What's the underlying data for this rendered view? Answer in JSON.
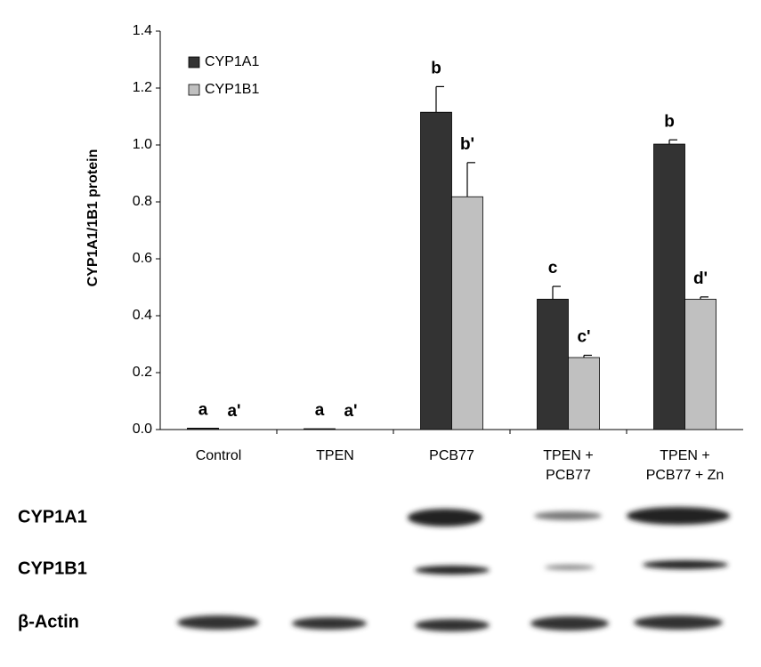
{
  "chart_data": {
    "type": "bar",
    "ylabel": "CYP1A1/1B1 protein",
    "categories": [
      [
        "Control"
      ],
      [
        "TPEN"
      ],
      [
        "PCB77"
      ],
      [
        "TPEN +",
        "PCB77"
      ],
      [
        "TPEN +",
        "PCB77 + Zn"
      ]
    ],
    "series": [
      {
        "name": "CYP1A1",
        "color": "#333333",
        "values": [
          0.005,
          0.003,
          1.115,
          0.458,
          1.003
        ],
        "errors": [
          0,
          0,
          0.09,
          0.045,
          0.015
        ],
        "letters": [
          "a",
          "a",
          "b",
          "c",
          "b"
        ]
      },
      {
        "name": "CYP1B1",
        "color": "#c0c0c0",
        "values": [
          0,
          0,
          0.818,
          0.253,
          0.458
        ],
        "errors": [
          0,
          0,
          0.12,
          0.008,
          0.008
        ],
        "letters": [
          "a'",
          "a'",
          "b'",
          "c'",
          "d'"
        ]
      }
    ],
    "ylim": [
      0,
      1.4
    ],
    "yticks": [
      {
        "value": 0,
        "label": "0.0"
      },
      {
        "value": 0.2,
        "label": "0.2"
      },
      {
        "value": 0.4,
        "label": "0.4"
      },
      {
        "value": 0.6,
        "label": "0.6"
      },
      {
        "value": 0.8,
        "label": "0.8"
      },
      {
        "value": 1,
        "label": "1.0"
      },
      {
        "value": 1.2,
        "label": "1.2"
      },
      {
        "value": 1.4,
        "label": "1.4"
      }
    ],
    "legend": "upper left"
  },
  "blot": {
    "rows": [
      "CYP1A1",
      "CYP1B1",
      "β-Actin"
    ]
  }
}
